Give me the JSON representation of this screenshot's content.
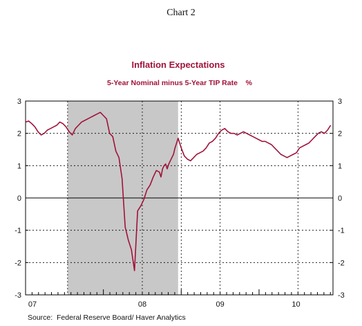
{
  "header": {
    "chart_label": "Chart 2"
  },
  "source": "Source:  Federal Reserve Board/ Haver Analytics",
  "colors": {
    "series": "#a0123a",
    "recession": "#c8c8c8",
    "grid": "#000000",
    "axis": "#000000"
  },
  "chart_data": {
    "type": "line",
    "title": "Inflation Expectations",
    "subtitle": "5-Year Nominal minus 5-Year TIP Rate    %",
    "x_tick_labels": [
      "07",
      "08",
      "09",
      "10"
    ],
    "y_ticks": [
      3,
      2,
      1,
      0,
      -1,
      -2,
      -3
    ],
    "y_tick_labels": [
      "3",
      "2",
      "1",
      "0",
      "-1",
      "-2",
      "-3"
    ],
    "ylim": [
      -3,
      3
    ],
    "xlim": [
      2007.0,
      2010.95
    ],
    "vertical_gridlines_at": [
      2007.54,
      2008.5,
      2009.0,
      2009.5,
      2010.5
    ],
    "shaded_region": {
      "label": "",
      "from": 2007.54,
      "to": 2008.96
    },
    "grid": "dotted",
    "series": [
      {
        "x": [
          2007.0,
          2007.04,
          2007.08,
          2007.12,
          2007.16,
          2007.2,
          2007.24,
          2007.28,
          2007.32,
          2007.36,
          2007.4,
          2007.44,
          2007.48,
          2007.52,
          2007.56,
          2007.6,
          2007.64,
          2007.68,
          2007.72,
          2007.76,
          2007.8,
          2007.84,
          2007.88,
          2007.92,
          2007.96,
          2008.0,
          2008.04,
          2008.08,
          2008.12,
          2008.16,
          2008.2,
          2008.24,
          2008.28,
          2008.32,
          2008.36,
          2008.4,
          2008.44,
          2008.48,
          2008.52,
          2008.56,
          2008.6,
          2008.64,
          2008.68,
          2008.72,
          2008.74,
          2008.76,
          2008.78,
          2008.8,
          2008.82,
          2008.84,
          2008.86,
          2008.88,
          2008.9,
          2008.92,
          2008.94,
          2008.96,
          2009.0,
          2009.04,
          2009.08,
          2009.12,
          2009.16,
          2009.2,
          2009.24,
          2009.28,
          2009.32,
          2009.36,
          2009.4,
          2009.44,
          2009.48,
          2009.52,
          2009.56,
          2009.6,
          2009.64,
          2009.68,
          2009.72,
          2009.76,
          2009.8,
          2009.84,
          2009.88,
          2009.92,
          2009.96,
          2010.0,
          2010.04,
          2010.08,
          2010.12,
          2010.16,
          2010.2,
          2010.24,
          2010.28,
          2010.32,
          2010.36,
          2010.4,
          2010.44,
          2010.48,
          2010.52,
          2010.56,
          2010.6,
          2010.64,
          2010.68,
          2010.72,
          2010.76,
          2010.8,
          2010.84,
          2010.88,
          2010.92
        ],
        "y": [
          2.35,
          2.38,
          2.3,
          2.2,
          2.05,
          1.95,
          2.0,
          2.1,
          2.15,
          2.2,
          2.25,
          2.35,
          2.3,
          2.2,
          2.05,
          1.95,
          2.15,
          2.25,
          2.35,
          2.4,
          2.45,
          2.5,
          2.55,
          2.6,
          2.65,
          2.55,
          2.45,
          2.0,
          1.9,
          1.45,
          1.25,
          0.6,
          -0.9,
          -1.3,
          -1.6,
          -2.25,
          -0.4,
          -0.25,
          -0.05,
          0.25,
          0.4,
          0.65,
          0.85,
          0.8,
          0.65,
          0.9,
          1.0,
          1.05,
          0.9,
          1.05,
          1.15,
          1.25,
          1.35,
          1.55,
          1.7,
          1.85,
          1.55,
          1.3,
          1.2,
          1.15,
          1.25,
          1.35,
          1.4,
          1.45,
          1.55,
          1.7,
          1.75,
          1.85,
          2.0,
          2.1,
          2.15,
          2.05,
          2.0,
          2.0,
          1.95,
          2.0,
          2.05,
          2.0,
          1.95,
          1.9,
          1.85,
          1.8,
          1.75,
          1.75,
          1.7,
          1.65,
          1.55,
          1.45,
          1.35,
          1.3,
          1.25,
          1.3,
          1.35,
          1.4,
          1.55,
          1.6,
          1.65,
          1.7,
          1.8,
          1.9,
          2.0,
          2.05,
          2.0,
          2.1,
          2.25
        ]
      }
    ]
  }
}
